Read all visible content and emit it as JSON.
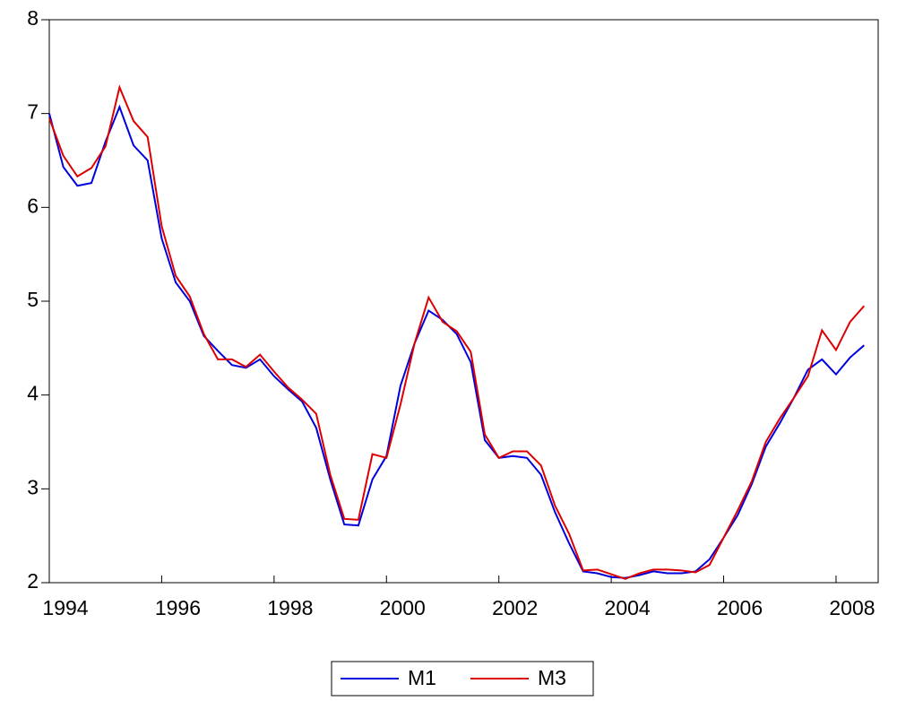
{
  "chart_data": {
    "type": "line",
    "x": [
      1994,
      1994.25,
      1994.5,
      1994.75,
      1995,
      1995.25,
      1995.5,
      1995.75,
      1996,
      1996.25,
      1996.5,
      1996.75,
      1997,
      1997.25,
      1997.5,
      1997.75,
      1998,
      1998.25,
      1998.5,
      1998.75,
      1999,
      1999.25,
      1999.5,
      1999.75,
      2000,
      2000.25,
      2000.5,
      2000.75,
      2001,
      2001.25,
      2001.5,
      2001.75,
      2002,
      2002.25,
      2002.5,
      2002.75,
      2003,
      2003.25,
      2003.5,
      2003.75,
      2004,
      2004.25,
      2004.5,
      2004.75,
      2005,
      2005.25,
      2005.5,
      2005.75,
      2006,
      2006.25,
      2006.5,
      2006.75,
      2007,
      2007.25,
      2007.5,
      2007.75,
      2008,
      2008.25,
      2008.5
    ],
    "series": [
      {
        "name": "M1",
        "color": "#0000dd",
        "values": [
          7.0,
          6.43,
          6.23,
          6.26,
          6.7,
          7.07,
          6.66,
          6.5,
          5.67,
          5.2,
          5.0,
          4.63,
          4.47,
          4.32,
          4.29,
          4.38,
          4.2,
          4.06,
          3.93,
          3.65,
          3.1,
          2.62,
          2.61,
          3.1,
          3.35,
          4.1,
          4.55,
          4.9,
          4.8,
          4.65,
          4.35,
          3.52,
          3.33,
          3.35,
          3.33,
          3.15,
          2.75,
          2.42,
          2.12,
          2.1,
          2.06,
          2.05,
          2.08,
          2.12,
          2.1,
          2.1,
          2.12,
          2.25,
          2.48,
          2.72,
          3.05,
          3.45,
          3.7,
          3.97,
          4.27,
          4.38,
          4.22,
          4.4,
          4.53
        ]
      },
      {
        "name": "M3",
        "color": "#dd0000",
        "values": [
          6.95,
          6.55,
          6.33,
          6.42,
          6.65,
          7.28,
          6.92,
          6.75,
          5.8,
          5.27,
          5.05,
          4.65,
          4.38,
          4.38,
          4.3,
          4.43,
          4.25,
          4.08,
          3.95,
          3.8,
          3.15,
          2.68,
          2.67,
          3.37,
          3.33,
          3.9,
          4.55,
          5.04,
          4.78,
          4.68,
          4.46,
          3.58,
          3.33,
          3.4,
          3.4,
          3.25,
          2.82,
          2.52,
          2.13,
          2.14,
          2.09,
          2.04,
          2.1,
          2.14,
          2.14,
          2.13,
          2.11,
          2.19,
          2.48,
          2.77,
          3.08,
          3.5,
          3.75,
          3.97,
          4.2,
          4.69,
          4.48,
          4.78,
          4.95
        ]
      }
    ],
    "xlim": [
      1994,
      2008.75
    ],
    "xticks": [
      1994,
      1996,
      1998,
      2000,
      2002,
      2004,
      2006,
      2008
    ],
    "ylim": [
      2,
      8
    ],
    "yticks": [
      2,
      3,
      4,
      5,
      6,
      7,
      8
    ],
    "legend": "bottom"
  }
}
